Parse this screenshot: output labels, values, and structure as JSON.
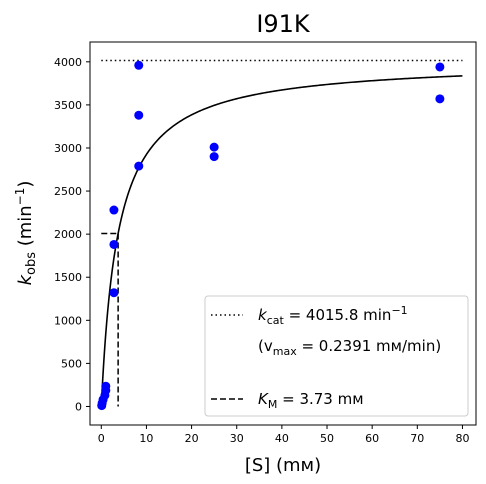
{
  "colors": {
    "data_points": "#0000ff",
    "fit_curve": "#000000",
    "reference_lines": "#000000"
  },
  "chart_data": {
    "type": "scatter",
    "title": "I91K",
    "xlabel": "[S] (mм)",
    "ylabel_main": "k",
    "ylabel_sub": "obs",
    "ylabel_unit": " (min",
    "ylabel_exp": "−1",
    "ylabel_close": ")",
    "xlim": [
      -2.5,
      83
    ],
    "ylim": [
      -215,
      4230
    ],
    "x_ticks": [
      0,
      10,
      20,
      30,
      40,
      50,
      60,
      70,
      80
    ],
    "y_ticks": [
      0,
      500,
      1000,
      1500,
      2000,
      2500,
      3000,
      3500,
      4000
    ],
    "grid": false,
    "legend_placement": "lower right",
    "points": [
      {
        "x": 0.1,
        "y": 10
      },
      {
        "x": 0.2,
        "y": 40
      },
      {
        "x": 0.4,
        "y": 80
      },
      {
        "x": 0.8,
        "y": 130
      },
      {
        "x": 1.0,
        "y": 185
      },
      {
        "x": 1.0,
        "y": 235
      },
      {
        "x": 2.8,
        "y": 1320
      },
      {
        "x": 2.8,
        "y": 1880
      },
      {
        "x": 2.8,
        "y": 2280
      },
      {
        "x": 8.3,
        "y": 2790
      },
      {
        "x": 8.3,
        "y": 3380
      },
      {
        "x": 8.3,
        "y": 3960
      },
      {
        "x": 25,
        "y": 2900
      },
      {
        "x": 25,
        "y": 3010
      },
      {
        "x": 75,
        "y": 3570
      },
      {
        "x": 75,
        "y": 3940
      }
    ],
    "fit": {
      "model": "Michaelis-Menten",
      "kcat": 4015.8,
      "KM": 3.73
    },
    "legend": {
      "kcat_label": "k",
      "kcat_sub": "cat",
      "kcat_value": " = 4015.8 min",
      "kcat_exp": "−1",
      "vmax_open": "(v",
      "vmax_sub": "max",
      "vmax_value": " = 0.2391 mм/min)",
      "km_label": "K",
      "km_sub": "M",
      "km_value": " = 3.73 mм"
    }
  }
}
